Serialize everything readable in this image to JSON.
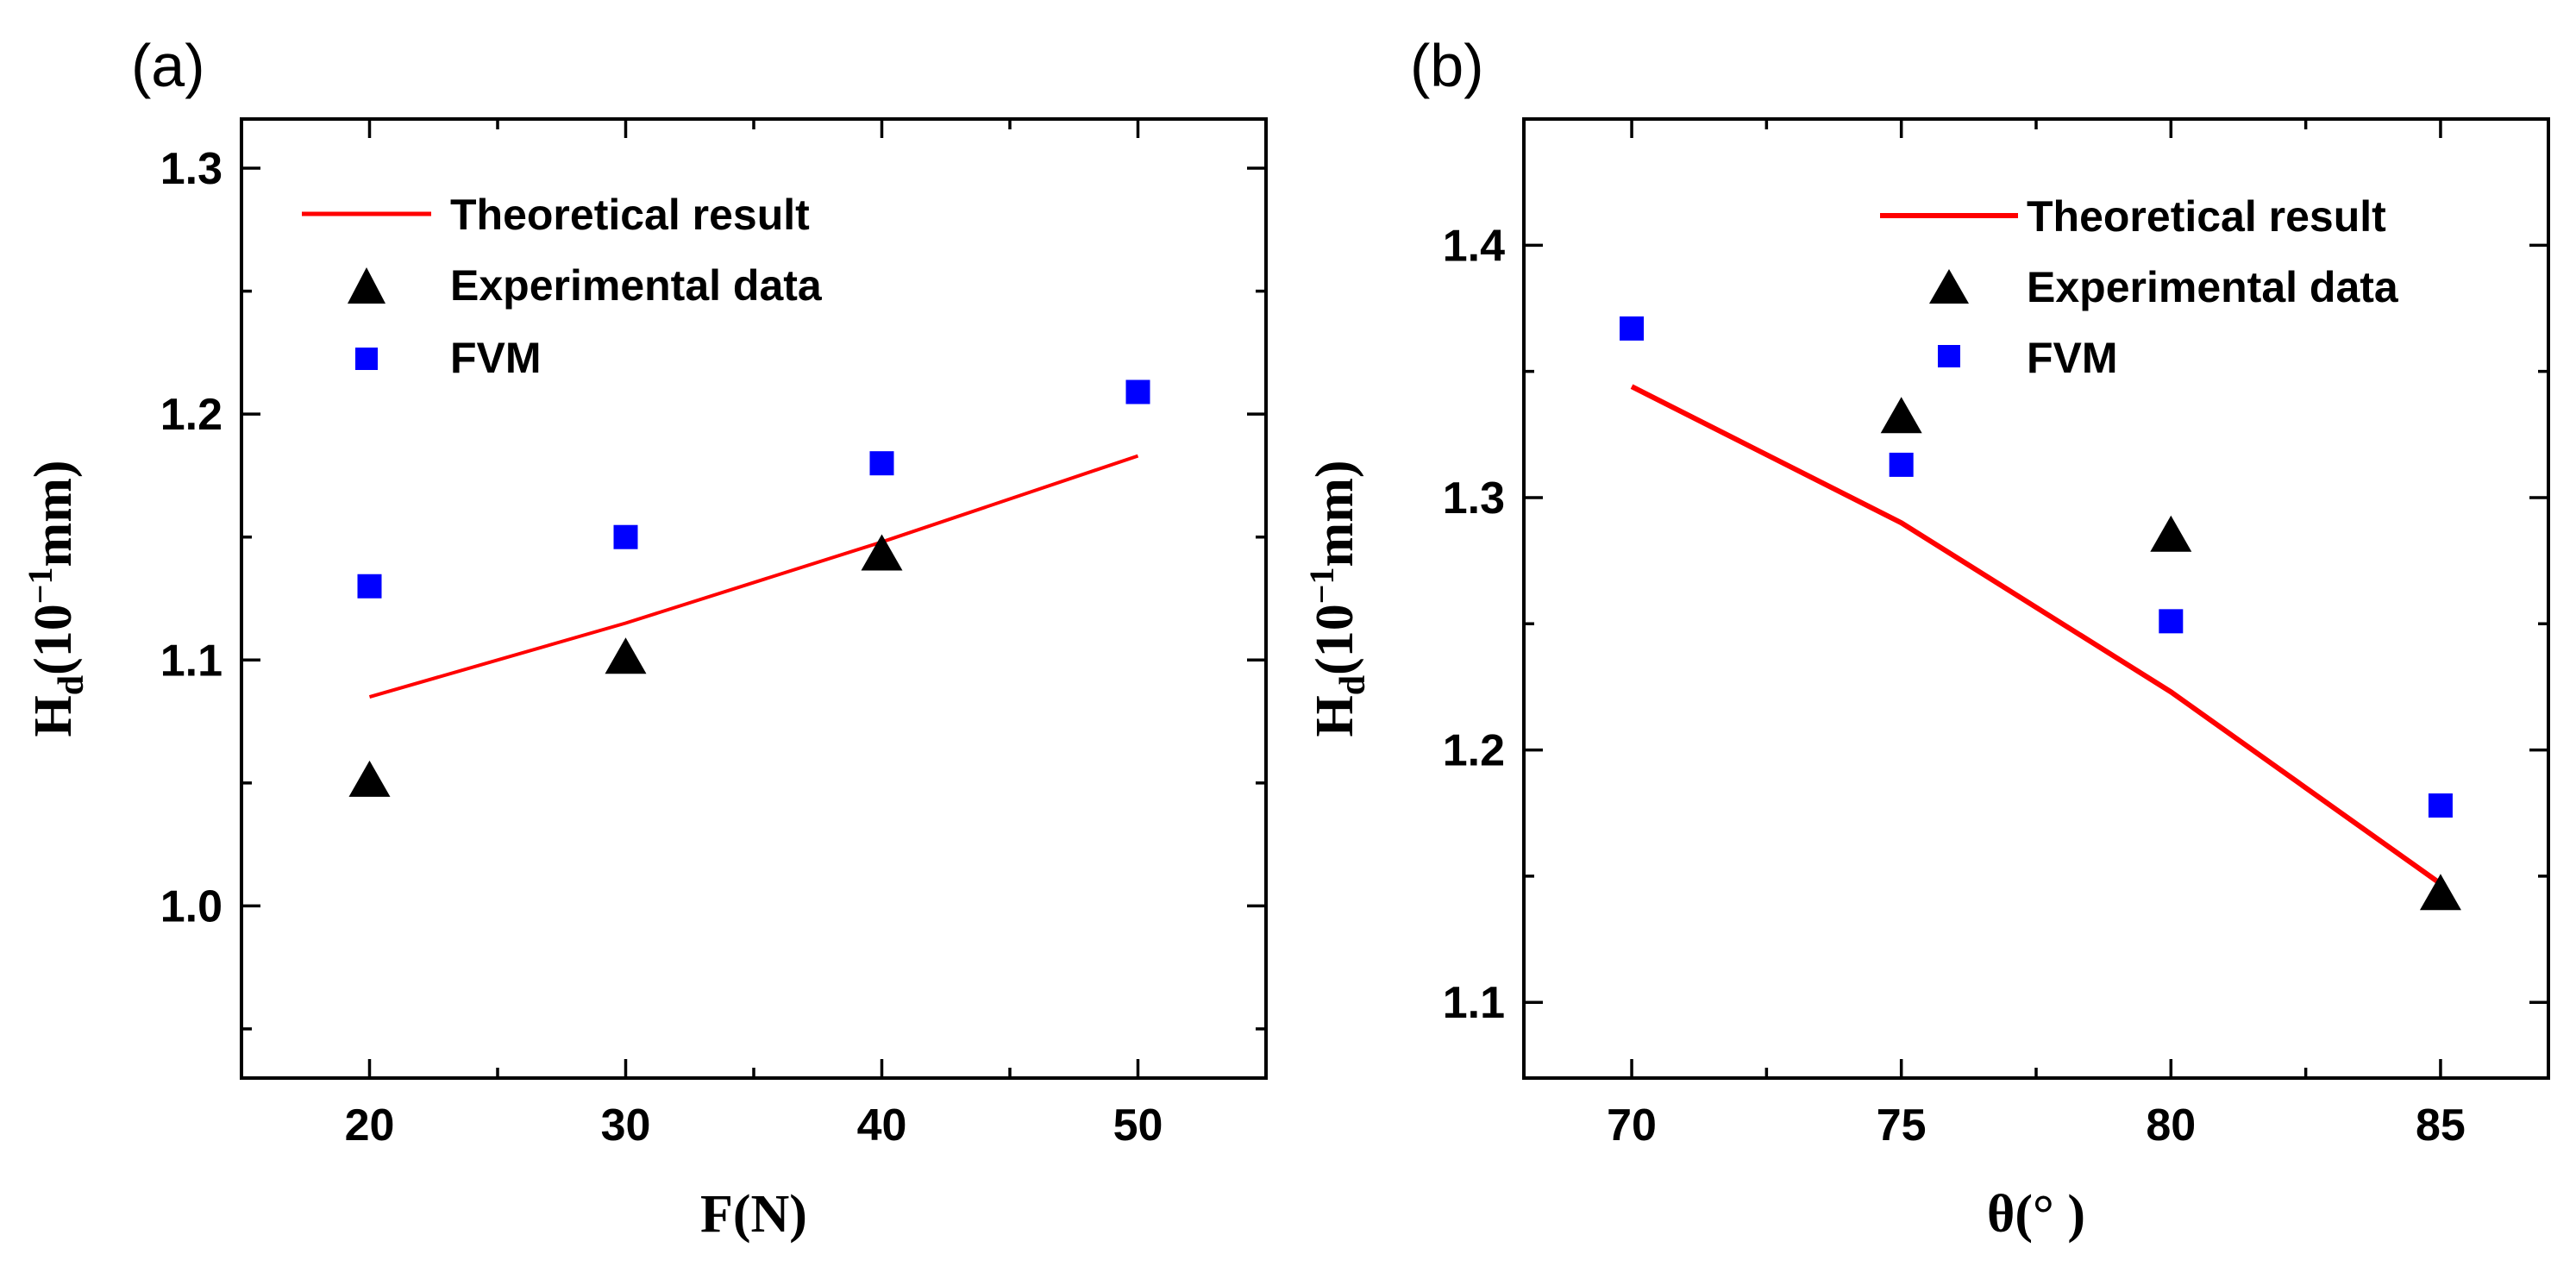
{
  "chart_data": [
    {
      "type": "line",
      "panel_label": "(a)",
      "xlabel": "F(N)",
      "ylabel": {
        "main": "H",
        "sub": "d",
        "unit": "(10",
        "sup": "−1",
        "end": "mm)"
      },
      "xlim": [
        15,
        55
      ],
      "ylim": [
        0.93,
        1.32
      ],
      "xticks": [
        20,
        30,
        40,
        50
      ],
      "xtick_labels": [
        "20",
        "30",
        "40",
        "50"
      ],
      "yticks": [
        1.0,
        1.1,
        1.2,
        1.3
      ],
      "ytick_labels": [
        "1.0",
        "1.1",
        "1.2",
        "1.3"
      ],
      "x_minor_step": 5,
      "y_minor_step": 0.05,
      "legend_position": "top-left",
      "series": [
        {
          "name": "Theoretical result",
          "kind": "line",
          "color": "#ff0000",
          "x": [
            20,
            30,
            40,
            50
          ],
          "values": [
            1.085,
            1.115,
            1.148,
            1.183
          ]
        },
        {
          "name": "Experimental data",
          "kind": "triangle",
          "color": "#000000",
          "x": [
            20,
            30,
            40
          ],
          "values": [
            1.05,
            1.1,
            1.142
          ]
        },
        {
          "name": "FVM",
          "kind": "square",
          "color": "#0000ff",
          "x": [
            20,
            30,
            40,
            50
          ],
          "values": [
            1.13,
            1.15,
            1.18,
            1.209
          ]
        }
      ]
    },
    {
      "type": "line",
      "panel_label": "(b)",
      "xlabel": "θ(°  )",
      "ylabel": {
        "main": "H",
        "sub": "d",
        "unit": "(10",
        "sup": "−1",
        "end": "mm)"
      },
      "xlim": [
        68,
        87
      ],
      "ylim": [
        1.07,
        1.45
      ],
      "xticks": [
        70,
        75,
        80,
        85
      ],
      "xtick_labels": [
        "70",
        "75",
        "80",
        "85"
      ],
      "yticks": [
        1.1,
        1.2,
        1.3,
        1.4
      ],
      "ytick_labels": [
        "1.1",
        "1.2",
        "1.3",
        "1.4"
      ],
      "x_minor_step": 2.5,
      "y_minor_step": 0.05,
      "legend_position": "top-right",
      "series": [
        {
          "name": "Theoretical result",
          "kind": "line",
          "color": "#ff0000",
          "x": [
            70,
            75,
            80,
            85
          ],
          "values": [
            1.344,
            1.29,
            1.223,
            1.147
          ]
        },
        {
          "name": "Experimental data",
          "kind": "triangle",
          "color": "#000000",
          "x": [
            75,
            80,
            85
          ],
          "values": [
            1.331,
            1.284,
            1.142
          ]
        },
        {
          "name": "FVM",
          "kind": "square",
          "color": "#0000ff",
          "x": [
            70,
            75,
            80,
            85
          ],
          "values": [
            1.367,
            1.313,
            1.251,
            1.178
          ]
        }
      ]
    }
  ]
}
